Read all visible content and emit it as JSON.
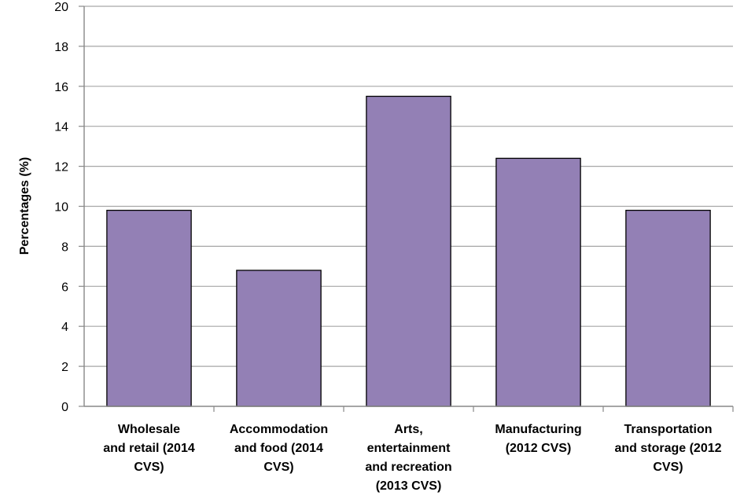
{
  "chart_data": {
    "type": "bar",
    "title": "",
    "xlabel": "",
    "ylabel": "Percentages (%)",
    "ylim": [
      0,
      20
    ],
    "ytick_step": 2,
    "grid": true,
    "categories": [
      [
        "Wholesale",
        "and retail (2014",
        "CVS)"
      ],
      [
        "Accommodation",
        "and food (2014",
        "CVS)"
      ],
      [
        "Arts,",
        "entertainment",
        "and recreation",
        "(2013 CVS)"
      ],
      [
        "Manufacturing",
        "(2012 CVS)"
      ],
      [
        "Transportation",
        "and storage (2012",
        "CVS)"
      ]
    ],
    "series": [
      {
        "name": "Percentage",
        "values": [
          9.8,
          6.8,
          15.5,
          12.4,
          9.8
        ]
      }
    ],
    "colors": {
      "bar_fill": "#9380B5",
      "bar_stroke": "#000000",
      "grid": "#A6A6A6",
      "axis": "#888888"
    }
  }
}
